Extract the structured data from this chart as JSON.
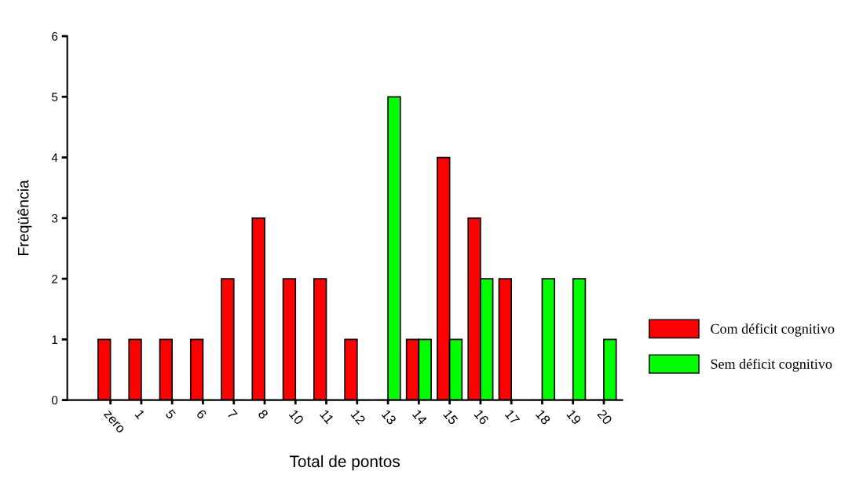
{
  "chart_data": {
    "type": "bar",
    "xlabel": "Total de pontos",
    "ylabel": "Freqüência",
    "categories": [
      "zero",
      "1",
      "5",
      "6",
      "7",
      "8",
      "10",
      "11",
      "12",
      "13",
      "14",
      "15",
      "16",
      "17",
      "18",
      "19",
      "20"
    ],
    "series": [
      {
        "name": "Com déficit cognitivo",
        "color": "#ff0000",
        "values": [
          1,
          1,
          1,
          1,
          2,
          3,
          2,
          2,
          1,
          0,
          1,
          4,
          3,
          2,
          0,
          0,
          0
        ]
      },
      {
        "name": "Sem déficit cognitivo",
        "color": "#00ff00",
        "values": [
          0,
          0,
          0,
          0,
          0,
          0,
          0,
          0,
          0,
          5,
          1,
          1,
          2,
          0,
          2,
          2,
          1
        ]
      }
    ],
    "ylim": [
      0,
      6
    ],
    "yticks": [
      0,
      1,
      2,
      3,
      4,
      5,
      6
    ],
    "grid": false,
    "legend": "right"
  }
}
